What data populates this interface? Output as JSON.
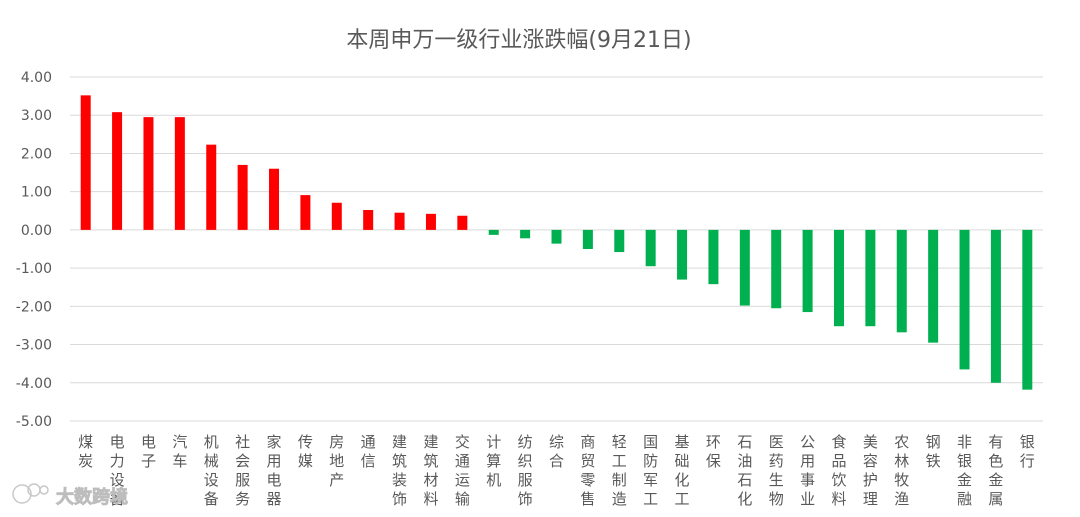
{
  "chart_data": {
    "type": "bar",
    "title": "本周申万一级行业涨跌幅(9月21日)",
    "xlabel": "",
    "ylabel": "",
    "ylim": [
      -5,
      4
    ],
    "yticks": [
      "4.00",
      "3.00",
      "2.00",
      "1.00",
      "0.00",
      "-1.00",
      "-2.00",
      "-3.00",
      "-4.00",
      "-5.00"
    ],
    "grid": true,
    "legend": "none",
    "positive_color": "#ff0000",
    "negative_color": "#00b050",
    "categories": [
      "煤炭",
      "电力设备",
      "电子",
      "汽车",
      "机械设备",
      "社会服务",
      "家用电器",
      "传媒",
      "房地产",
      "通信",
      "建筑装饰",
      "建筑材料",
      "交通运输",
      "计算机",
      "纺织服饰",
      "综合",
      "商贸零售",
      "轻工制造",
      "国防军工",
      "基础化工",
      "环保",
      "石油石化",
      "医药生物",
      "公用事业",
      "食品饮料",
      "美容护理",
      "农林牧渔",
      "钢铁",
      "非银金融",
      "有色金属",
      "银行"
    ],
    "values": [
      3.52,
      3.08,
      2.95,
      2.95,
      2.23,
      1.7,
      1.6,
      0.91,
      0.71,
      0.52,
      0.45,
      0.42,
      0.37,
      -0.13,
      -0.22,
      -0.36,
      -0.5,
      -0.58,
      -0.95,
      -1.3,
      -1.42,
      -1.98,
      -2.05,
      -2.15,
      -2.52,
      -2.52,
      -2.68,
      -2.95,
      -3.65,
      -4.0,
      -4.18
    ]
  },
  "watermark": {
    "text": "大数跨境",
    "icon": "brand-logo-icon"
  }
}
